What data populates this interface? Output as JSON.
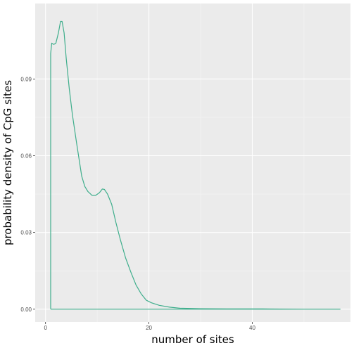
{
  "colors": {
    "panel_background": "#ebebeb",
    "grid_major": "#ffffff",
    "grid_minor": "#f5f5f5",
    "series_line": "#3fae8c"
  },
  "chart_data": {
    "type": "line",
    "xlabel": "number of sites",
    "ylabel": "probability density of CpG sites",
    "xlim": [
      -2,
      59
    ],
    "ylim": [
      -0.005,
      0.1195
    ],
    "x_ticks": [
      0,
      20,
      40
    ],
    "x_tick_labels": [
      "0",
      "20",
      "40"
    ],
    "y_ticks": [
      0.0,
      0.03,
      0.06,
      0.09
    ],
    "y_tick_labels": [
      "0.00",
      "0.03",
      "0.06",
      "0.09"
    ],
    "grid": true,
    "legend": "none",
    "series": [
      {
        "x": [
          1.0,
          1.0,
          1.2,
          1.6,
          2.0,
          2.5,
          2.9,
          3.2,
          3.6,
          4.0,
          4.6,
          5.2,
          6.0,
          7.0,
          7.6,
          8.2,
          9.0,
          9.7,
          10.4,
          11.0,
          11.4,
          12.0,
          12.8,
          13.6,
          14.5,
          15.5,
          16.5,
          17.5,
          18.5,
          19.5,
          20.5,
          22.0,
          24.0,
          26.0,
          30.0,
          35.0,
          42.0,
          50.0,
          57.0,
          57.0,
          1.0
        ],
        "y": [
          0.0,
          0.1,
          0.104,
          0.1035,
          0.104,
          0.108,
          0.1125,
          0.1125,
          0.108,
          0.098,
          0.086,
          0.076,
          0.065,
          0.052,
          0.048,
          0.046,
          0.0445,
          0.0445,
          0.0455,
          0.047,
          0.0468,
          0.045,
          0.041,
          0.034,
          0.027,
          0.02,
          0.0145,
          0.0095,
          0.006,
          0.0035,
          0.0025,
          0.0015,
          0.0008,
          0.0004,
          0.0002,
          0.0001,
          0.0001,
          0.0,
          0.0,
          0.0,
          0.0
        ]
      }
    ]
  }
}
